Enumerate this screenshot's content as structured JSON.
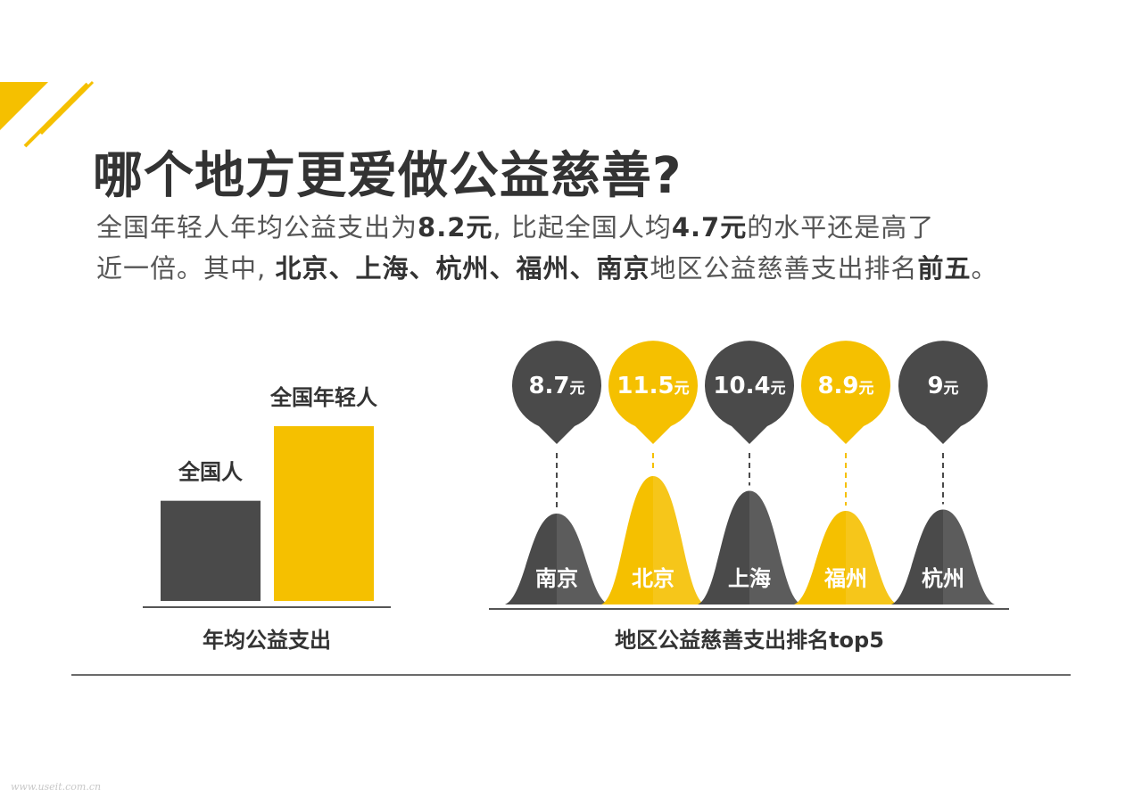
{
  "title": "哪个地方更爱做公益慈善?",
  "subtitle": {
    "line1": {
      "a": "全国年轻人年均公益支出为",
      "b": "8.2元",
      "c": ", 比起全国人均",
      "d": "4.7元",
      "e": "的水平还是高了"
    },
    "line2": {
      "a": "近一倍。其中, ",
      "b": "北京、上海、杭州、福州、南京",
      "c": "地区公益慈善支出排名",
      "d": "前五",
      "e": "。"
    }
  },
  "colors": {
    "dark": "#4a4a4a",
    "accent": "#f5c000",
    "text": "#333333"
  },
  "watermark": "www.useit.com.cn",
  "chart_data": [
    {
      "type": "bar",
      "title": "年均公益支出",
      "categories": [
        "全国人",
        "全国年轻人"
      ],
      "values": [
        4.7,
        8.2
      ],
      "colors": [
        "#4a4a4a",
        "#f5c000"
      ],
      "ylim": [
        0,
        8.2
      ]
    },
    {
      "type": "bar",
      "title": "地区公益慈善支出排名top5",
      "categories": [
        "南京",
        "北京",
        "上海",
        "福州",
        "杭州"
      ],
      "values": [
        8.7,
        11.5,
        10.4,
        8.9,
        9
      ],
      "value_labels": [
        "8.7",
        "11.5",
        "10.4",
        "8.9",
        "9"
      ],
      "unit": "元",
      "colors": [
        "#4a4a4a",
        "#f5c000",
        "#4a4a4a",
        "#f5c000",
        "#4a4a4a"
      ]
    }
  ]
}
